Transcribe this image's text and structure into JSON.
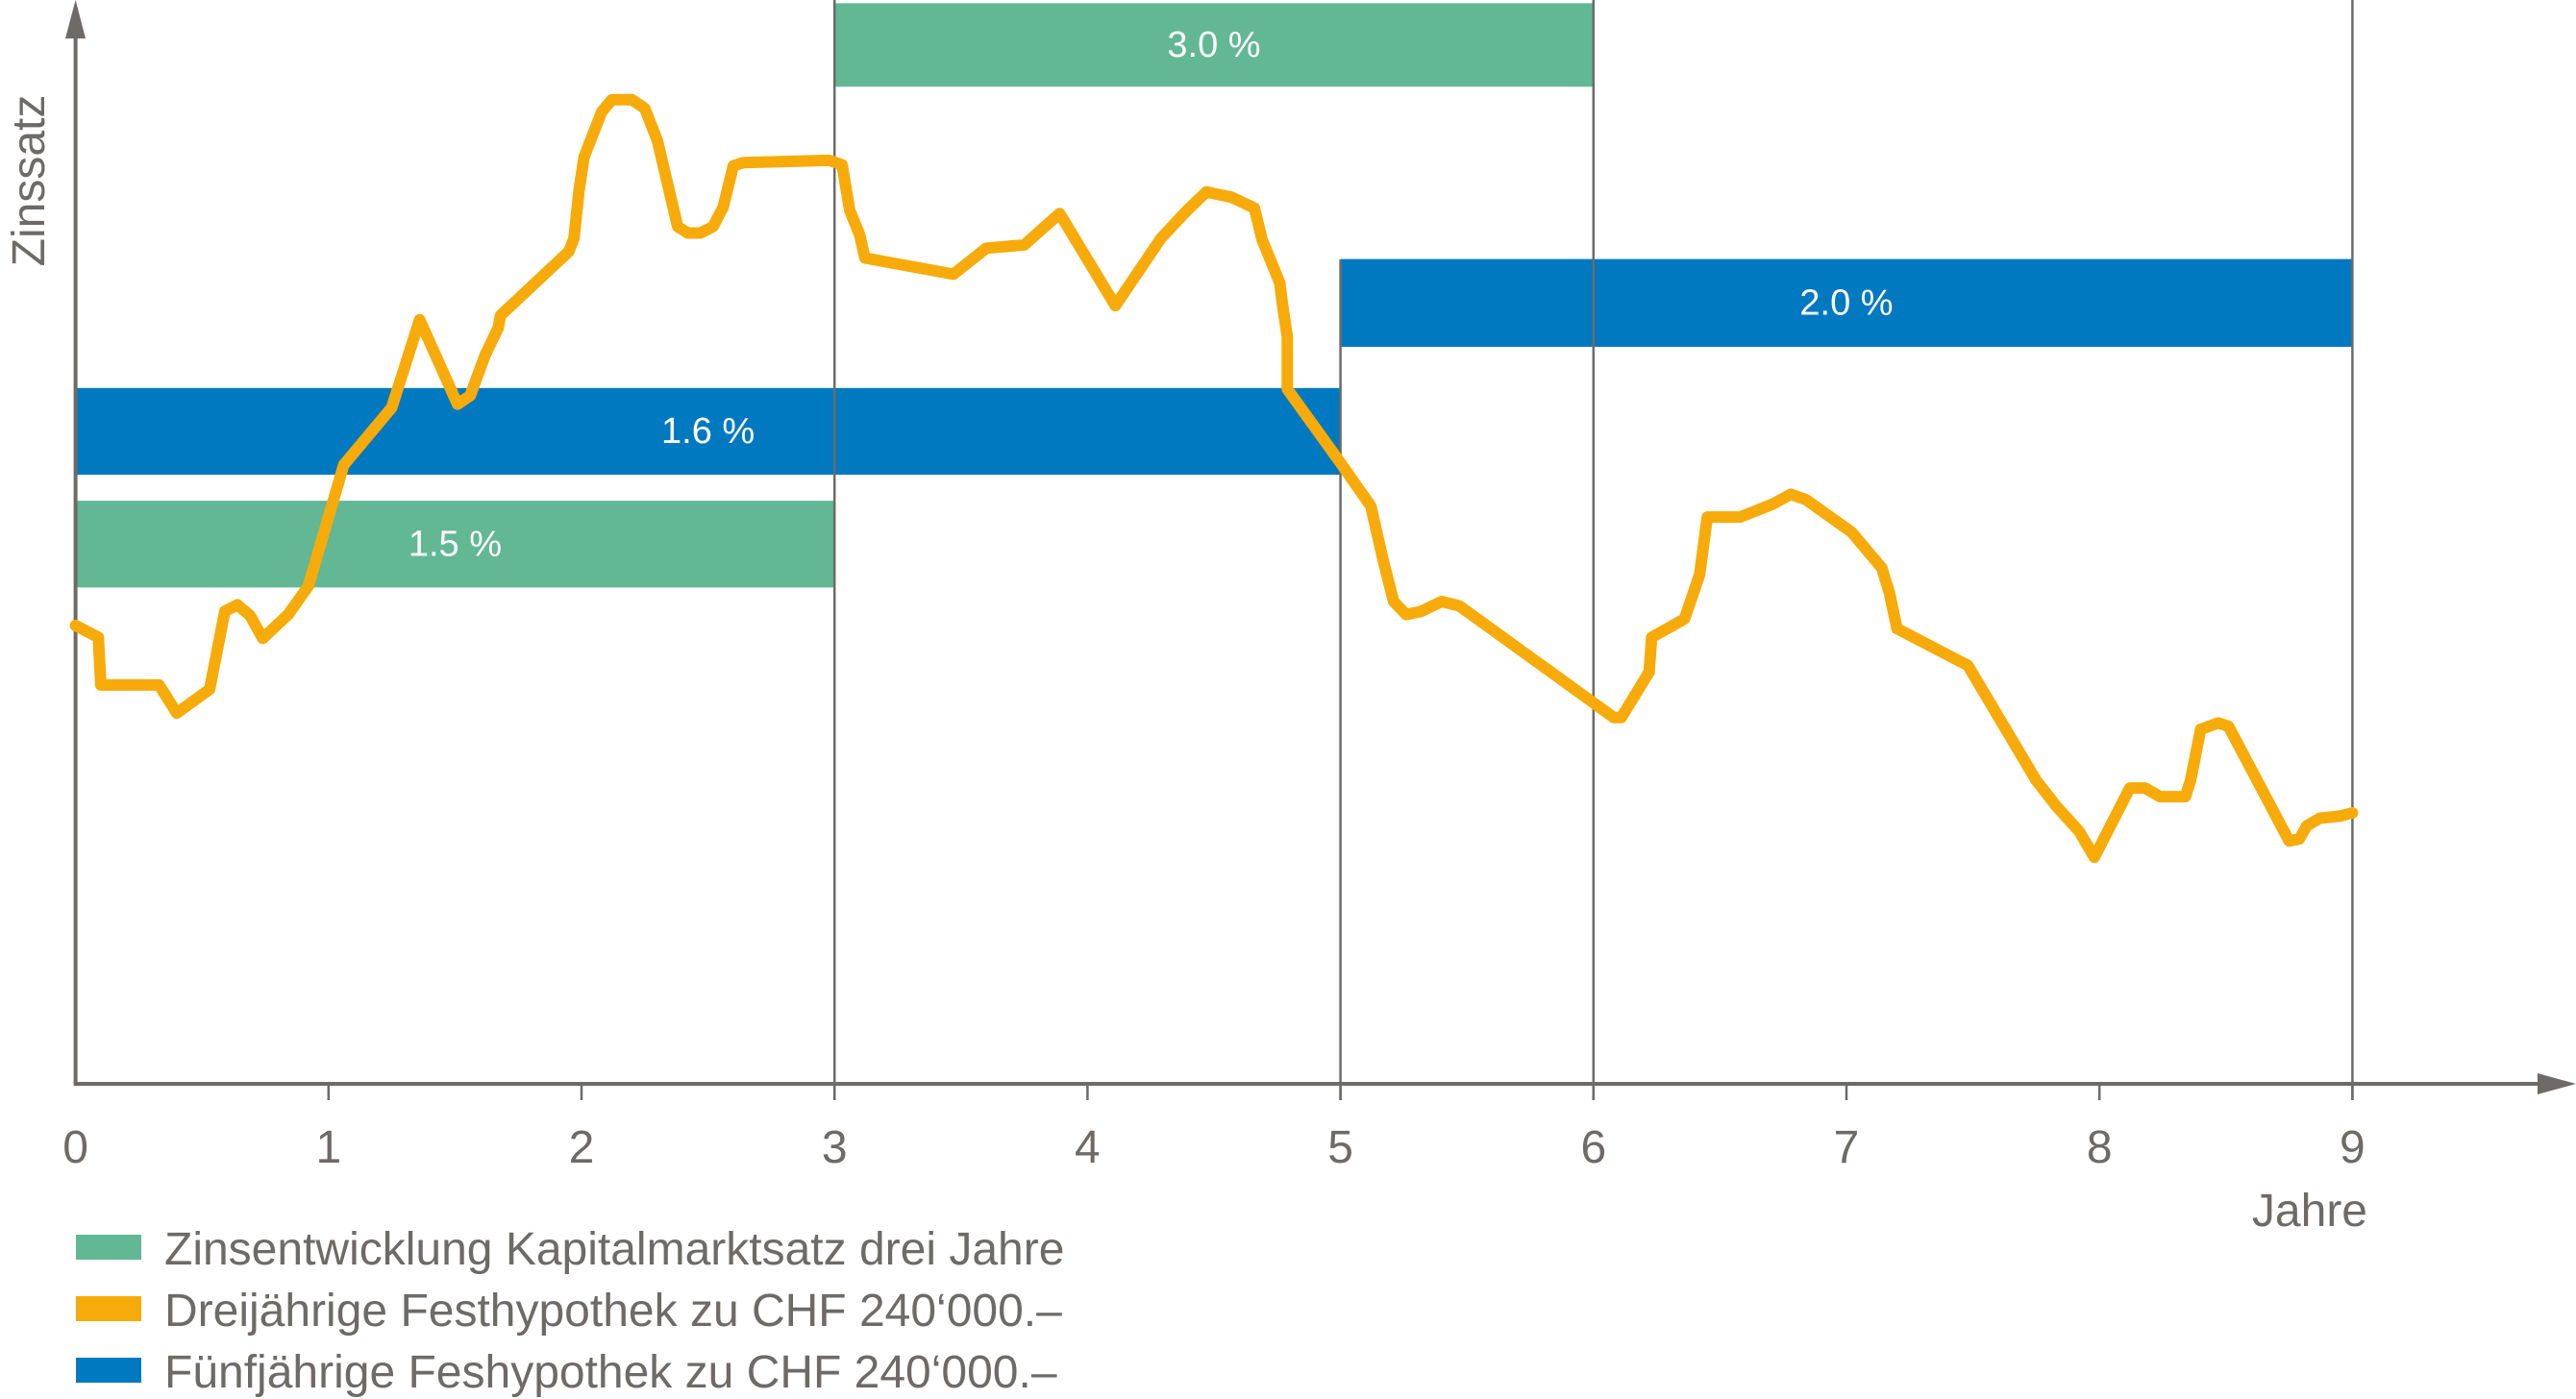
{
  "chart_data": {
    "type": "line",
    "title": "",
    "xlabel": "Jahre",
    "ylabel": "Zinssatz",
    "xlim": [
      0,
      9
    ],
    "ylim": [
      0,
      100
    ],
    "y_units": "relative level (no scale shown)",
    "x_ticks": [
      "0",
      "1",
      "2",
      "3",
      "4",
      "5",
      "6",
      "7",
      "8",
      "9"
    ],
    "grid": "vertical lines at years 3, 5, 6, 9",
    "colors": {
      "green": "#62b795",
      "orange": "#f7ab0a",
      "blue": "#0079c0",
      "axis": "#6d6a67"
    },
    "bars": [
      {
        "label": "3.0 %",
        "series": "green",
        "x_start": 3,
        "x_end": 6,
        "level_top": 99.7,
        "level_bottom": 92.0
      },
      {
        "label": "2.0 %",
        "series": "blue",
        "x_start": 5,
        "x_end": 9,
        "level_top": 76.1,
        "level_bottom": 68.0
      },
      {
        "label": "1.6 %",
        "series": "blue",
        "x_start": 0,
        "x_end": 5,
        "level_top": 64.2,
        "level_bottom": 56.2
      },
      {
        "label": "1.5 %",
        "series": "green",
        "x_start": 0,
        "x_end": 3,
        "level_top": 53.8,
        "level_bottom": 45.8
      }
    ],
    "series": [
      {
        "name": "Dreijährige Festhypothek zu CHF 240‘000.–",
        "color": "orange",
        "x": [
          0.0,
          0.09,
          0.1,
          0.33,
          0.4,
          0.53,
          0.59,
          0.64,
          0.69,
          0.74,
          0.84,
          0.92,
          1.06,
          1.25,
          1.36,
          1.51,
          1.56,
          1.62,
          1.67,
          1.68,
          1.95,
          1.97,
          1.99,
          2.01,
          2.08,
          2.12,
          2.2,
          2.25,
          2.3,
          2.38,
          2.42,
          2.47,
          2.52,
          2.56,
          2.6,
          2.64,
          2.98,
          3.03,
          3.06,
          3.1,
          3.12,
          3.47,
          3.6,
          3.75,
          3.89,
          4.11,
          4.29,
          4.39,
          4.47,
          4.57,
          4.66,
          4.69,
          4.76,
          4.77,
          4.79,
          4.79,
          5.0,
          5.12,
          5.17,
          5.21,
          5.26,
          5.32,
          5.4,
          5.47,
          6.08,
          6.11,
          6.22,
          6.23,
          6.36,
          6.42,
          6.45,
          6.58,
          6.71,
          6.78,
          6.84,
          7.02,
          7.14,
          7.17,
          7.2,
          7.48,
          7.75,
          7.83,
          7.92,
          7.98,
          8.12,
          8.18,
          8.24,
          8.34,
          8.36,
          8.4,
          8.47,
          8.51,
          8.75,
          8.79,
          8.82,
          8.87,
          8.95,
          9.0
        ],
        "y": [
          42.3,
          41.2,
          36.8,
          36.8,
          34.2,
          36.4,
          43.6,
          44.2,
          43.2,
          41.1,
          43.3,
          45.9,
          57.1,
          62.4,
          70.5,
          62.7,
          63.5,
          67.3,
          69.7,
          70.9,
          76.8,
          78.0,
          82.4,
          85.5,
          89.7,
          90.8,
          90.8,
          90.0,
          87.0,
          79.1,
          78.5,
          78.5,
          79.1,
          80.9,
          84.7,
          85.0,
          85.2,
          84.8,
          80.6,
          78.3,
          76.2,
          74.7,
          77.1,
          77.4,
          80.3,
          71.8,
          78.0,
          80.5,
          82.3,
          81.8,
          80.8,
          77.9,
          73.9,
          72.0,
          68.9,
          64.1,
          57.3,
          53.3,
          48.2,
          44.5,
          43.3,
          43.6,
          44.5,
          44.1,
          33.8,
          33.8,
          38.0,
          41.2,
          42.9,
          47.0,
          52.3,
          52.3,
          53.5,
          54.4,
          53.9,
          50.9,
          47.6,
          45.3,
          42.0,
          38.6,
          28.0,
          25.6,
          23.3,
          20.9,
          27.3,
          27.3,
          26.5,
          26.5,
          28.0,
          32.7,
          33.3,
          33.0,
          22.4,
          22.6,
          23.8,
          24.5,
          24.7,
          25.0
        ]
      }
    ],
    "legend": [
      {
        "label": "Zinsentwicklung Kapitalmarktsatz drei Jahre",
        "color": "green"
      },
      {
        "label": "Dreijährige Festhypothek zu CHF 240‘000.–",
        "color": "orange"
      },
      {
        "label": "Fünfjährige Feshypothek zu CHF 240‘000.–",
        "color": "blue"
      }
    ],
    "legend_placement": "bottom-left"
  }
}
